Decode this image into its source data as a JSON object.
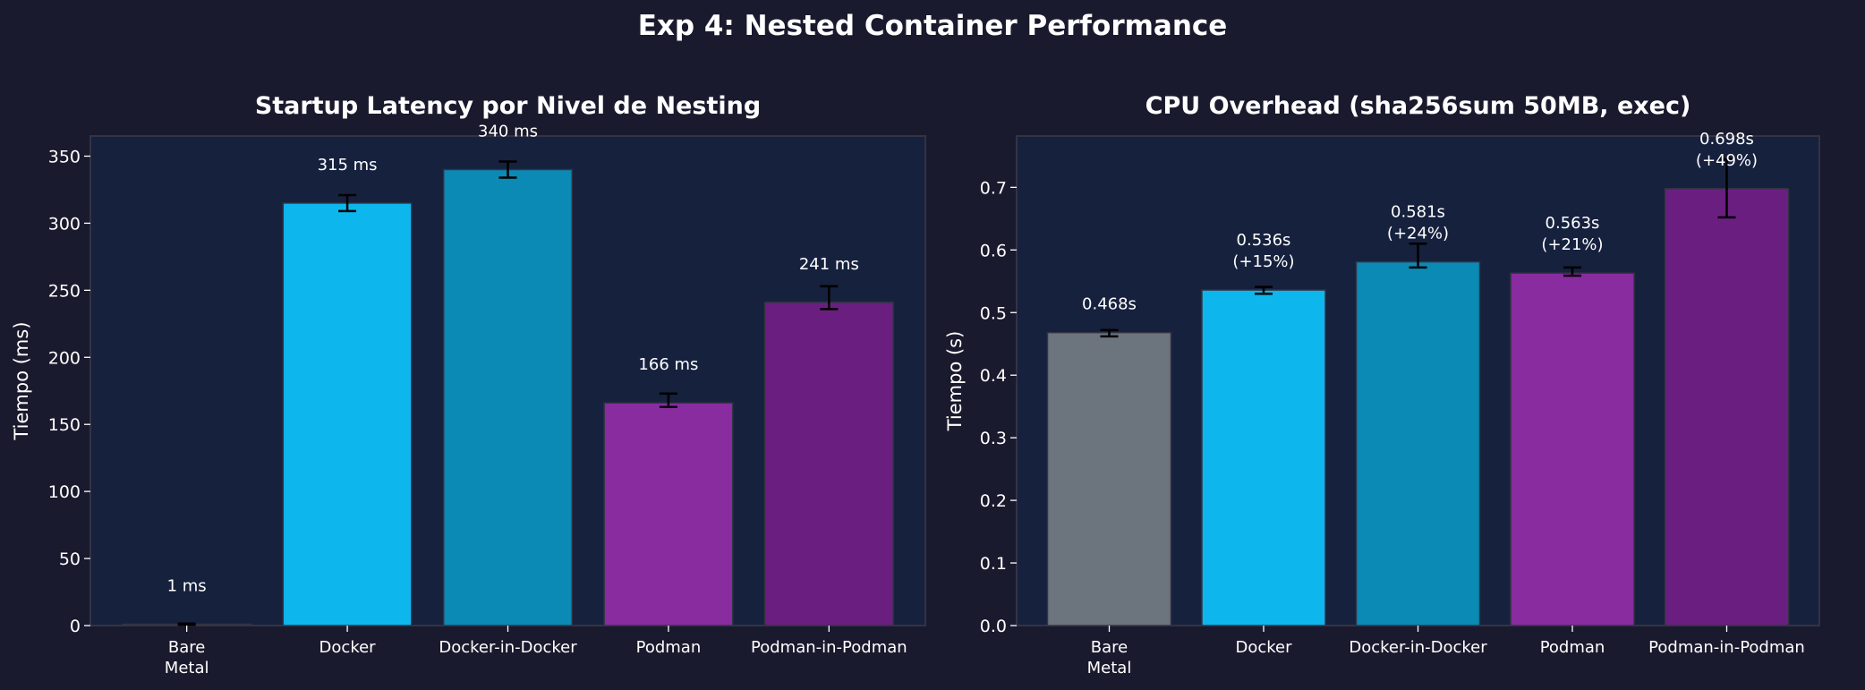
{
  "title": "Exp 4: Nested Container Performance",
  "colors": {
    "background": "#1a1a2e",
    "axes": "#16213e",
    "edge": "#333344",
    "error": "#000000",
    "text": "#ffffff"
  },
  "chart_data": [
    {
      "type": "bar",
      "title": "Startup Latency por Nivel de Nesting",
      "xlabel": "",
      "ylabel": "Tiempo (ms)",
      "categories": [
        "Bare\nMetal",
        "Docker",
        "Docker-in-Docker",
        "Podman",
        "Podman-in-Podman"
      ],
      "values": [
        1,
        315,
        340,
        166,
        241
      ],
      "error_low": [
        0.5,
        6,
        6,
        3,
        5
      ],
      "error_high": [
        0.5,
        6,
        6,
        7,
        12
      ],
      "data_labels": [
        "1 ms",
        "315 ms",
        "340 ms",
        "166 ms",
        "241 ms"
      ],
      "bar_colors": [
        "#6c757d",
        "#0db7ed",
        "#0a8ab5",
        "#892ca0",
        "#6a1f80"
      ],
      "ylim": [
        0,
        365
      ],
      "yticks": [
        0,
        50,
        100,
        150,
        200,
        250,
        300,
        350
      ],
      "ytick_labels": [
        "0",
        "50",
        "100",
        "150",
        "200",
        "250",
        "300",
        "350"
      ],
      "grid": false
    },
    {
      "type": "bar",
      "title": "CPU Overhead (sha256sum 50MB, exec)",
      "xlabel": "",
      "ylabel": "Tiempo (s)",
      "categories": [
        "Bare\nMetal",
        "Docker",
        "Docker-in-Docker",
        "Podman",
        "Podman-in-Podman"
      ],
      "values": [
        0.468,
        0.536,
        0.581,
        0.563,
        0.698
      ],
      "error_low": [
        0.006,
        0.006,
        0.009,
        0.004,
        0.046
      ],
      "error_high": [
        0.004,
        0.005,
        0.029,
        0.009,
        0.047
      ],
      "data_labels": [
        "0.468s",
        "0.536s\n(+15%)",
        "0.581s\n(+24%)",
        "0.563s\n(+21%)",
        "0.698s\n(+49%)"
      ],
      "bar_colors": [
        "#6c757d",
        "#0db7ed",
        "#0a8ab5",
        "#892ca0",
        "#6a1f80"
      ],
      "ylim": [
        0,
        0.782
      ],
      "yticks": [
        0,
        0.1,
        0.2,
        0.3,
        0.4,
        0.5,
        0.6,
        0.7
      ],
      "ytick_labels": [
        "0.0",
        "0.1",
        "0.2",
        "0.3",
        "0.4",
        "0.5",
        "0.6",
        "0.7"
      ],
      "grid": false
    }
  ]
}
